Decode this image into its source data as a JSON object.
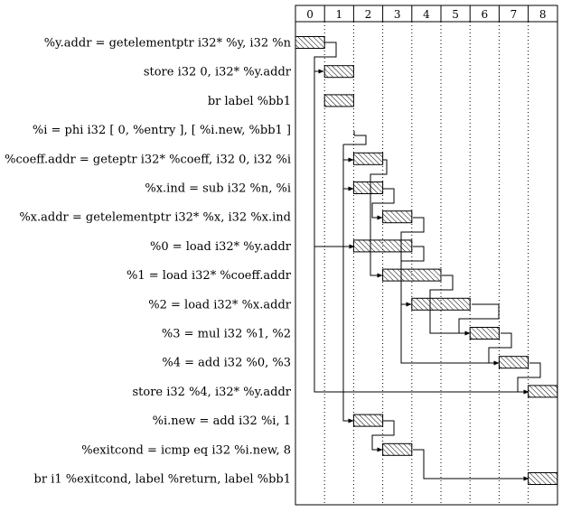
{
  "columns": [
    "0",
    "1",
    "2",
    "3",
    "4",
    "5",
    "6",
    "7",
    "8"
  ],
  "rows": [
    "%y.addr = getelementptr i32* %y, i32 %n",
    "store i32 0, i32* %y.addr",
    "br label %bb1",
    "%i = phi i32 [ 0, %entry ], [ %i.new, %bb1 ]",
    "%coeff.addr = geteptr i32* %coeff, i32 0, i32 %i",
    "%x.ind = sub i32 %n, %i",
    "%x.addr = getelementptr i32* %x, i32 %x.ind",
    "%0 = load i32* %y.addr",
    "%1 = load i32* %coeff.addr",
    "%2 = load i32* %x.addr",
    "%3 = mul i32 %1, %2",
    "%4 = add i32 %0, %3",
    "store i32 %4, i32* %y.addr",
    "%i.new = add i32 %i, 1",
    "%exitcond = icmp eq i32 %i.new, 8",
    "br i1 %exitcond, label %return, label %bb1"
  ],
  "schedule": [
    {
      "row": 0,
      "start": 0,
      "cycles": 1
    },
    {
      "row": 1,
      "start": 1,
      "cycles": 1
    },
    {
      "row": 2,
      "start": 1,
      "cycles": 1
    },
    {
      "row": 4,
      "start": 2,
      "cycles": 1
    },
    {
      "row": 5,
      "start": 2,
      "cycles": 1
    },
    {
      "row": 6,
      "start": 3,
      "cycles": 1
    },
    {
      "row": 7,
      "start": 2,
      "cycles": 2
    },
    {
      "row": 8,
      "start": 3,
      "cycles": 2
    },
    {
      "row": 9,
      "start": 4,
      "cycles": 2
    },
    {
      "row": 10,
      "start": 6,
      "cycles": 1
    },
    {
      "row": 11,
      "start": 7,
      "cycles": 1
    },
    {
      "row": 12,
      "start": 8,
      "cycles": 1
    },
    {
      "row": 13,
      "start": 2,
      "cycles": 1
    },
    {
      "row": 14,
      "start": 3,
      "cycles": 1
    },
    {
      "row": 15,
      "start": 8,
      "cycles": 1
    }
  ]
}
